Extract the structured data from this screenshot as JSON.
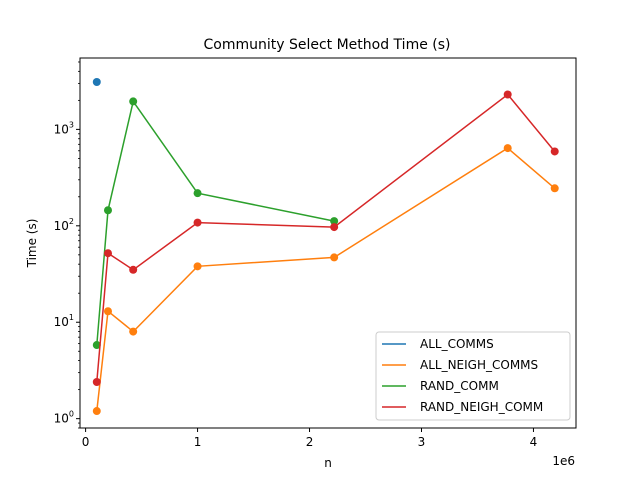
{
  "chart_data": {
    "type": "line",
    "title": "Community Select Method Time (s)",
    "xlabel": "n",
    "ylabel": "Time (s)",
    "x_offset_label": "1e6",
    "y_scale": "log",
    "xlim": [
      -50000,
      4380000
    ],
    "ylim": [
      0.8,
      5500
    ],
    "x_ticks": [
      {
        "value": 0,
        "label": "0"
      },
      {
        "value": 1000000,
        "label": "1"
      },
      {
        "value": 2000000,
        "label": "2"
      },
      {
        "value": 3000000,
        "label": "3"
      },
      {
        "value": 4000000,
        "label": "4"
      }
    ],
    "y_ticks": [
      {
        "value": 1,
        "base": "10",
        "exp": "0"
      },
      {
        "value": 10,
        "base": "10",
        "exp": "1"
      },
      {
        "value": 100,
        "base": "10",
        "exp": "2"
      },
      {
        "value": 1000,
        "base": "10",
        "exp": "3"
      }
    ],
    "grid": false,
    "legend_position": "lower-right",
    "series": [
      {
        "name": "ALL_COMMS",
        "color": "#1f77b4",
        "points": [
          [
            100000,
            3100
          ]
        ]
      },
      {
        "name": "ALL_NEIGH_COMMS",
        "color": "#ff7f0e",
        "points": [
          [
            100000,
            1.2
          ],
          [
            200000,
            13
          ],
          [
            425000,
            8
          ],
          [
            1000000,
            38
          ],
          [
            2220000,
            47
          ],
          [
            3770000,
            640
          ],
          [
            4190000,
            245
          ]
        ]
      },
      {
        "name": "RAND_COMM",
        "color": "#2ca02c",
        "points": [
          [
            100000,
            5.8
          ],
          [
            200000,
            145
          ],
          [
            425000,
            1950
          ],
          [
            1000000,
            218
          ],
          [
            2220000,
            112
          ]
        ]
      },
      {
        "name": "RAND_NEIGH_COMM",
        "color": "#d62728",
        "points": [
          [
            100000,
            2.4
          ],
          [
            200000,
            52
          ],
          [
            425000,
            35
          ],
          [
            1000000,
            108
          ],
          [
            2220000,
            97
          ],
          [
            3770000,
            2300
          ],
          [
            4190000,
            590
          ]
        ]
      }
    ]
  }
}
